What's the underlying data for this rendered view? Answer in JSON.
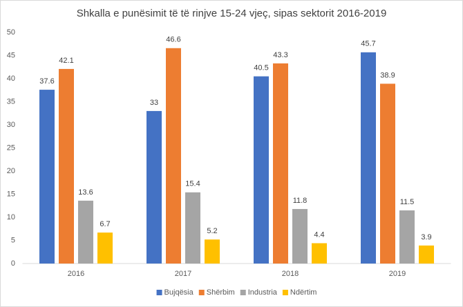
{
  "chart_data": {
    "type": "bar",
    "title": "Shkalla e punësimit të të rinjve 15-24 vjeç, sipas sektorit 2016-2019",
    "categories": [
      "2016",
      "2017",
      "2018",
      "2019"
    ],
    "series": [
      {
        "name": "Bujqësia",
        "color": "#4472c4",
        "values": [
          37.6,
          33,
          40.5,
          45.7
        ]
      },
      {
        "name": "Shërbim",
        "color": "#ed7d31",
        "values": [
          42.1,
          46.6,
          43.3,
          38.9
        ]
      },
      {
        "name": "Industria",
        "color": "#a5a5a5",
        "values": [
          13.6,
          15.4,
          11.8,
          11.5
        ]
      },
      {
        "name": "Ndërtim",
        "color": "#ffc000",
        "values": [
          6.7,
          5.2,
          4.4,
          3.9
        ]
      }
    ],
    "ylim": [
      0,
      50
    ],
    "yticks": [
      0,
      5,
      10,
      15,
      20,
      25,
      30,
      35,
      40,
      45,
      50
    ],
    "grid": false,
    "legend": "bottom",
    "data_labels": true
  }
}
